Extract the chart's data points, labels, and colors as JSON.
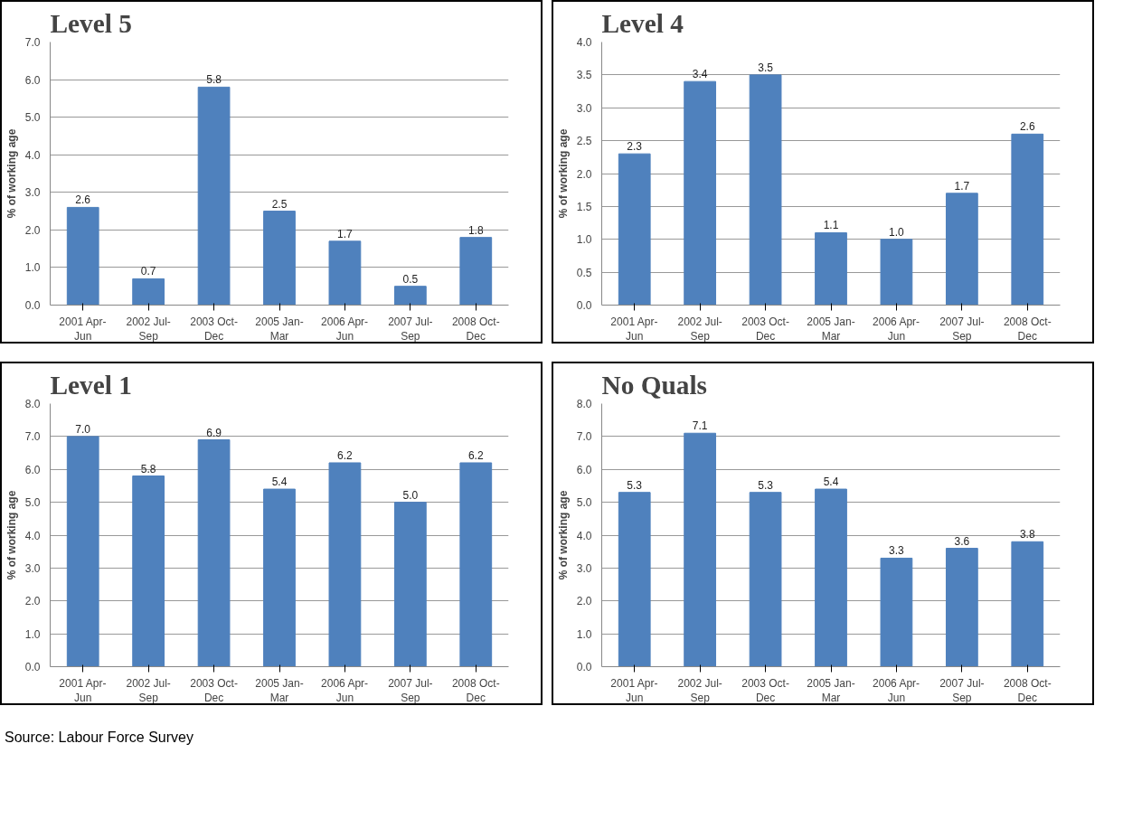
{
  "chart_data": [
    {
      "type": "bar",
      "title": "Level 5",
      "ylabel": "% of working age",
      "categories": [
        "2001 Apr-Jun",
        "2002 Jul-Sep",
        "2003 Oct-Dec",
        "2005 Jan-Mar",
        "2006 Apr-Jun",
        "2007 Jul-Sep",
        "2008 Oct-Dec"
      ],
      "values": [
        2.6,
        0.7,
        5.8,
        2.5,
        1.7,
        0.5,
        1.8
      ],
      "value_labels": [
        "2.6",
        "0.7",
        "5.8",
        "2.5",
        "1.7",
        "0.5",
        "1.8"
      ],
      "color": "#4f81bd",
      "grid": "y",
      "ylim": [
        0,
        7
      ],
      "yticks": [
        {
          "value": 0,
          "label": "0.0"
        },
        {
          "value": 1,
          "label": "1.0"
        },
        {
          "value": 2,
          "label": "2.0"
        },
        {
          "value": 3,
          "label": "3.0"
        },
        {
          "value": 4,
          "label": "4.0"
        },
        {
          "value": 5,
          "label": "5.0"
        },
        {
          "value": 6,
          "label": "6.0"
        },
        {
          "value": 7,
          "label": "7.0"
        }
      ]
    },
    {
      "type": "bar",
      "title": "Level 4",
      "ylabel": "% of working age",
      "categories": [
        "2001 Apr-Jun",
        "2002 Jul-Sep",
        "2003 Oct-Dec",
        "2005 Jan-Mar",
        "2006 Apr-Jun",
        "2007 Jul-Sep",
        "2008 Oct-Dec"
      ],
      "values": [
        2.3,
        3.4,
        3.5,
        1.1,
        1.0,
        1.7,
        2.6
      ],
      "value_labels": [
        "2.3",
        "3.4",
        "3.5",
        "1.1",
        "1.0",
        "1.7",
        "2.6"
      ],
      "color": "#4f81bd",
      "grid": "y",
      "ylim": [
        0,
        4
      ],
      "yticks": [
        {
          "value": 0,
          "label": "0.0"
        },
        {
          "value": 0.5,
          "label": "0.5"
        },
        {
          "value": 1,
          "label": "1.0"
        },
        {
          "value": 1.5,
          "label": "1.5"
        },
        {
          "value": 2,
          "label": "2.0"
        },
        {
          "value": 2.5,
          "label": "2.5"
        },
        {
          "value": 3,
          "label": "3.0"
        },
        {
          "value": 3.5,
          "label": "3.5"
        },
        {
          "value": 4,
          "label": "4.0"
        }
      ]
    },
    {
      "type": "bar",
      "title": "Level 1",
      "ylabel": "% of working age",
      "categories": [
        "2001 Apr-Jun",
        "2002 Jul-Sep",
        "2003 Oct-Dec",
        "2005 Jan-Mar",
        "2006 Apr-Jun",
        "2007 Jul-Sep",
        "2008 Oct-Dec"
      ],
      "values": [
        7.0,
        5.8,
        6.9,
        5.4,
        6.2,
        5.0,
        6.2
      ],
      "value_labels": [
        "7.0",
        "5.8",
        "6.9",
        "5.4",
        "6.2",
        "5.0",
        "6.2"
      ],
      "color": "#4f81bd",
      "grid": "y",
      "ylim": [
        0,
        8
      ],
      "yticks": [
        {
          "value": 0,
          "label": "0.0"
        },
        {
          "value": 1,
          "label": "1.0"
        },
        {
          "value": 2,
          "label": "2.0"
        },
        {
          "value": 3,
          "label": "3.0"
        },
        {
          "value": 4,
          "label": "4.0"
        },
        {
          "value": 5,
          "label": "5.0"
        },
        {
          "value": 6,
          "label": "6.0"
        },
        {
          "value": 7,
          "label": "7.0"
        },
        {
          "value": 8,
          "label": "8.0"
        }
      ]
    },
    {
      "type": "bar",
      "title": "No Quals",
      "ylabel": "% of working age",
      "categories": [
        "2001 Apr-Jun",
        "2002 Jul-Sep",
        "2003 Oct-Dec",
        "2005 Jan-Mar",
        "2006 Apr-Jun",
        "2007 Jul-Sep",
        "2008 Oct-Dec"
      ],
      "values": [
        5.3,
        7.1,
        5.3,
        5.4,
        3.3,
        3.6,
        3.8
      ],
      "value_labels": [
        "5.3",
        "7.1",
        "5.3",
        "5.4",
        "3.3",
        "3.6",
        "3.8"
      ],
      "color": "#4f81bd",
      "grid": "y",
      "ylim": [
        0,
        8
      ],
      "yticks": [
        {
          "value": 0,
          "label": "0.0"
        },
        {
          "value": 1,
          "label": "1.0"
        },
        {
          "value": 2,
          "label": "2.0"
        },
        {
          "value": 3,
          "label": "3.0"
        },
        {
          "value": 4,
          "label": "4.0"
        },
        {
          "value": 5,
          "label": "5.0"
        },
        {
          "value": 6,
          "label": "6.0"
        },
        {
          "value": 7,
          "label": "7.0"
        },
        {
          "value": 8,
          "label": "8.0"
        }
      ],
      "annotations": [
        "Source: Labour Force Survey"
      ]
    }
  ]
}
